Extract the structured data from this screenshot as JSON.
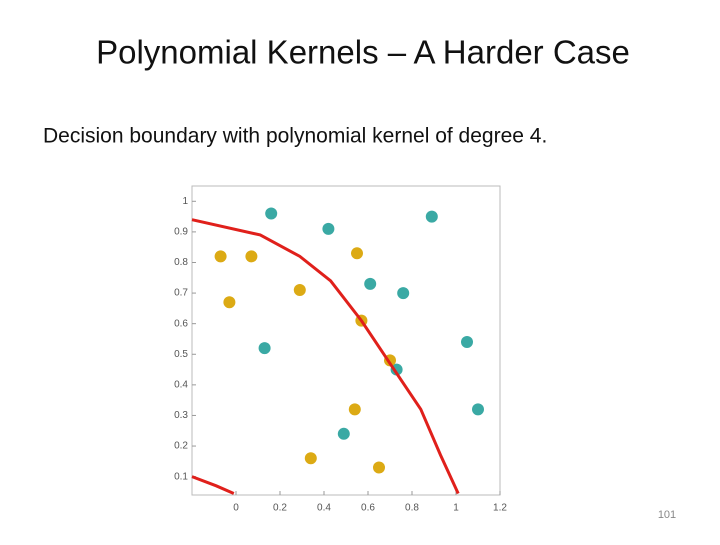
{
  "slide": {
    "title": "Polynomial Kernels – A Harder Case",
    "subtitle": "Decision boundary with polynomial kernel of degree 4.",
    "page_number": "101"
  },
  "chart_data": {
    "type": "scatter",
    "xlim": [
      -0.2,
      1.2
    ],
    "xticks": [
      0,
      0.2,
      0.4,
      0.6,
      0.8,
      1,
      1.2
    ],
    "ylim": [
      0.04,
      1.05
    ],
    "yticks": [
      0.1,
      0.2,
      0.3,
      0.4,
      0.5,
      0.6,
      0.7,
      0.8,
      0.9,
      1
    ],
    "series": [
      {
        "color": "#3aa9a4",
        "line": false,
        "x": [
          0.16,
          0.42,
          0.89,
          0.61,
          0.76,
          0.13,
          1.05,
          0.73,
          1.1,
          0.49
        ],
        "values": [
          0.96,
          0.91,
          0.95,
          0.73,
          0.7,
          0.52,
          0.54,
          0.45,
          0.32,
          0.24
        ]
      },
      {
        "color": "#dcaa14",
        "line": false,
        "x": [
          -0.07,
          0.07,
          -0.03,
          0.29,
          0.55,
          0.57,
          0.7,
          0.54,
          0.34,
          0.65
        ],
        "values": [
          0.82,
          0.82,
          0.67,
          0.71,
          0.83,
          0.61,
          0.48,
          0.32,
          0.16,
          0.13
        ]
      },
      {
        "color": "#e0201b",
        "line": true,
        "x": [
          -0.2,
          0.11,
          0.29,
          0.43,
          0.57,
          0.7,
          0.84,
          0.93,
          1.01
        ],
        "values": [
          0.94,
          0.89,
          0.82,
          0.74,
          0.61,
          0.47,
          0.32,
          0.17,
          0.045
        ]
      },
      {
        "color": "#e0201b",
        "line": true,
        "x": [
          -0.2,
          -0.09,
          -0.01
        ],
        "values": [
          0.1,
          0.07,
          0.045
        ]
      }
    ]
  }
}
